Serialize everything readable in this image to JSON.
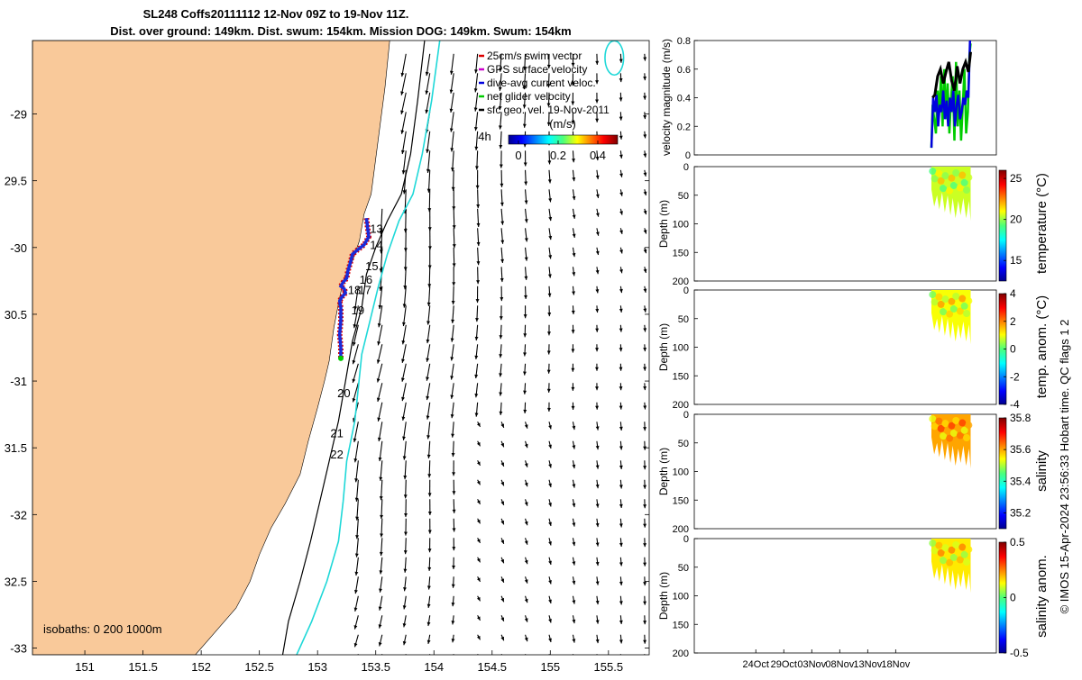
{
  "header": {
    "line1": "SL248 Coffs20111112 12-Nov 09Z to 19-Nov 11Z.",
    "line2": "Dist. over ground: 149km. Dist. swum: 154km. Mission DOG: 149km. Swum: 154km"
  },
  "side_stamp": "© IMOS 15-Apr-2024 23:56:33 Hobart time. QC flags 1  2",
  "colors": {
    "land": "#f9c99a",
    "isobath_200": "#000000",
    "isobath_1000": "#1fd8d8",
    "swim_vector": "#dd0000",
    "gps_velocity": "#cc00cc",
    "dive_avg": "#0000dd",
    "net_glider": "#00cc00",
    "sfc_geo": "#000000",
    "track": "#1a2ad8",
    "hist_mag": "#000000"
  },
  "chart_data": [
    {
      "type": "map",
      "name": "glider-track-map",
      "xlim": [
        150.55,
        155.85
      ],
      "ylim": [
        -33.05,
        -28.45
      ],
      "x_ticks": [
        151,
        151.5,
        152,
        152.5,
        153,
        153.5,
        154,
        154.5,
        155,
        155.5
      ],
      "x_tick_labels": [
        "151",
        "151.5",
        "152",
        "152.5",
        "153",
        "153.5",
        "154",
        "154.5",
        "155",
        "155.5"
      ],
      "y_ticks": [
        -29,
        -29.5,
        -30,
        -30.5,
        -31,
        -31.5,
        -32,
        -32.5,
        -33
      ],
      "y_tick_labels": [
        "-29",
        "29.5",
        "-30",
        "30.5",
        "-31",
        "31.5",
        "-32",
        "32.5",
        "-33"
      ],
      "coast": [
        [
          153.62,
          -28.45
        ],
        [
          153.58,
          -28.8
        ],
        [
          153.52,
          -29.2
        ],
        [
          153.46,
          -29.6
        ],
        [
          153.4,
          -29.75
        ],
        [
          153.36,
          -29.95
        ],
        [
          153.3,
          -30.1
        ],
        [
          153.22,
          -30.25
        ],
        [
          153.18,
          -30.42
        ],
        [
          153.14,
          -30.6
        ],
        [
          153.1,
          -30.85
        ],
        [
          153.06,
          -31.0
        ],
        [
          153.0,
          -31.2
        ],
        [
          152.92,
          -31.45
        ],
        [
          152.85,
          -31.7
        ],
        [
          152.72,
          -31.92
        ],
        [
          152.6,
          -32.1
        ],
        [
          152.5,
          -32.3
        ],
        [
          152.42,
          -32.5
        ],
        [
          152.3,
          -32.7
        ],
        [
          152.15,
          -32.85
        ],
        [
          152.05,
          -32.95
        ],
        [
          151.95,
          -33.05
        ]
      ],
      "isobath_200": [
        [
          153.92,
          -28.45
        ],
        [
          153.86,
          -28.9
        ],
        [
          153.8,
          -29.3
        ],
        [
          153.72,
          -29.6
        ],
        [
          153.6,
          -29.8
        ],
        [
          153.5,
          -30.0
        ],
        [
          153.42,
          -30.2
        ],
        [
          153.38,
          -30.45
        ],
        [
          153.3,
          -30.7
        ],
        [
          153.24,
          -31.0
        ],
        [
          153.18,
          -31.3
        ],
        [
          153.1,
          -31.6
        ],
        [
          153.02,
          -31.9
        ],
        [
          152.94,
          -32.2
        ],
        [
          152.85,
          -32.5
        ],
        [
          152.75,
          -32.8
        ],
        [
          152.7,
          -33.05
        ]
      ],
      "isobath_1000": [
        [
          154.05,
          -28.45
        ],
        [
          153.98,
          -28.9
        ],
        [
          153.9,
          -29.3
        ],
        [
          153.82,
          -29.6
        ],
        [
          153.7,
          -29.8
        ],
        [
          153.6,
          -30.05
        ],
        [
          153.52,
          -30.3
        ],
        [
          153.45,
          -30.55
        ],
        [
          153.38,
          -30.8
        ],
        [
          153.35,
          -31.05
        ],
        [
          153.32,
          -31.3
        ],
        [
          153.25,
          -31.6
        ],
        [
          153.22,
          -31.9
        ],
        [
          153.18,
          -32.2
        ],
        [
          153.08,
          -32.5
        ],
        [
          152.95,
          -32.8
        ],
        [
          152.82,
          -33.05
        ]
      ],
      "isobath_1000_ring": {
        "center": [
          155.55,
          -28.58
        ],
        "radius": [
          0.08,
          0.08
        ]
      },
      "glider_track": [
        [
          153.42,
          -29.78
        ],
        [
          153.43,
          -29.85
        ],
        [
          153.44,
          -29.92
        ],
        [
          153.4,
          -29.98
        ],
        [
          153.34,
          -30.02
        ],
        [
          153.3,
          -30.05
        ],
        [
          153.28,
          -30.12
        ],
        [
          153.26,
          -30.18
        ],
        [
          153.25,
          -30.23
        ],
        [
          153.22,
          -30.26
        ],
        [
          153.2,
          -30.29
        ],
        [
          153.23,
          -30.31
        ],
        [
          153.24,
          -30.34
        ],
        [
          153.21,
          -30.37
        ],
        [
          153.19,
          -30.4
        ],
        [
          153.2,
          -30.45
        ],
        [
          153.2,
          -30.55
        ],
        [
          153.19,
          -30.65
        ],
        [
          153.2,
          -30.75
        ],
        [
          153.2,
          -30.83
        ]
      ],
      "day_labels": [
        {
          "text": "13",
          "lon": 153.45,
          "lat": -29.89
        },
        {
          "text": "14",
          "lon": 153.45,
          "lat": -30.01
        },
        {
          "text": "15",
          "lon": 153.41,
          "lat": -30.17
        },
        {
          "text": "16",
          "lon": 153.36,
          "lat": -30.27
        },
        {
          "text": "18",
          "lon": 153.26,
          "lat": -30.35
        },
        {
          "text": "17",
          "lon": 153.35,
          "lat": -30.35
        },
        {
          "text": "19",
          "lon": 153.29,
          "lat": -30.5
        },
        {
          "text": "20",
          "lon": 153.17,
          "lat": -31.12
        },
        {
          "text": "21",
          "lon": 153.11,
          "lat": -31.42
        },
        {
          "text": "22",
          "lon": 153.11,
          "lat": -31.58
        },
        {
          "text": "4h",
          "lon": 154.38,
          "lat": -29.2
        }
      ],
      "legend": [
        {
          "label": "25cm/s swim vector",
          "color": "#dd0000"
        },
        {
          "label": "GPS surface velocity",
          "color": "#cc00cc"
        },
        {
          "label": "dive-avg current veloc.",
          "color": "#0000dd"
        },
        {
          "label": "net glider velocity",
          "color": "#00cc00"
        },
        {
          "label": "sfc geo. vel. 19-Nov-2011",
          "color": "#000000"
        }
      ],
      "colorbar": {
        "title": "(m/s)",
        "range": [
          -0.05,
          0.5
        ],
        "ticks": [
          0,
          0.2,
          0.4
        ],
        "tick_labels": [
          "0",
          "0.2",
          "0.4"
        ]
      },
      "isobath_note": "isobaths: 0   200  1000m"
    },
    {
      "type": "line",
      "name": "velocity-magnitude",
      "ylabel": "velocity magnitude (m/s)",
      "ylim": [
        0,
        0.8
      ],
      "y_ticks": [
        0,
        0.2,
        0.4,
        0.6,
        0.8
      ],
      "y_tick_labels": [
        "0",
        "0.2",
        "0.4",
        "0.6",
        "0.8"
      ],
      "x_range_days": [
        -30,
        24
      ],
      "series": [
        {
          "color": "#00cc00",
          "x": [
            12.4,
            12.6,
            12.9,
            13.2,
            13.5,
            13.8,
            14.1,
            14.4,
            14.7,
            15.0,
            15.3,
            15.6,
            15.9,
            16.2,
            16.5,
            16.8,
            17.1,
            17.4,
            17.7,
            18.0,
            18.3,
            18.6,
            18.9,
            19.2,
            19.4
          ],
          "y": [
            0.05,
            0.35,
            0.25,
            0.15,
            0.45,
            0.3,
            0.55,
            0.2,
            0.6,
            0.25,
            0.5,
            0.15,
            0.4,
            0.55,
            0.1,
            0.65,
            0.2,
            0.45,
            0.1,
            0.35,
            0.6,
            0.15,
            0.3,
            0.7,
            0.78
          ]
        },
        {
          "color": "#0000dd",
          "x": [
            12.4,
            12.7,
            13.0,
            13.3,
            13.6,
            13.9,
            14.2,
            14.5,
            14.8,
            15.1,
            15.4,
            15.7,
            16.0,
            16.3,
            16.6,
            16.9,
            17.2,
            17.5,
            17.8,
            18.1,
            18.4,
            18.7,
            19.0,
            19.3
          ],
          "y": [
            0.05,
            0.4,
            0.3,
            0.42,
            0.2,
            0.35,
            0.3,
            0.45,
            0.25,
            0.38,
            0.2,
            0.4,
            0.3,
            0.45,
            0.2,
            0.35,
            0.42,
            0.25,
            0.3,
            0.4,
            0.35,
            0.45,
            0.4,
            0.8
          ]
        },
        {
          "color": "#000000",
          "x": [
            12.6,
            13.0,
            13.5,
            14.0,
            14.5,
            15.0,
            15.5,
            16.0,
            16.5,
            17.0,
            17.5,
            18.0,
            18.5,
            19.0,
            19.4
          ],
          "y": [
            0.4,
            0.42,
            0.55,
            0.6,
            0.5,
            0.58,
            0.65,
            0.52,
            0.45,
            0.62,
            0.5,
            0.6,
            0.65,
            0.58,
            0.72
          ]
        }
      ]
    },
    {
      "type": "heatmap",
      "name": "temperature",
      "ylabel": "Depth (m)",
      "ylim": [
        0,
        200
      ],
      "y_ticks": [
        0,
        50,
        100,
        150,
        200
      ],
      "y_tick_labels": [
        "0",
        "50",
        "100",
        "150",
        "200"
      ],
      "colorbar_label": "temperature (°C)",
      "colorbar_range": [
        12.5,
        26
      ],
      "colorbar_ticks": [
        15,
        20,
        25
      ],
      "colorbar_tick_labels": [
        "15",
        "20",
        "25"
      ],
      "value_estimate": 20.5,
      "max_depth_profile": [
        [
          12.4,
          40
        ],
        [
          12.9,
          70
        ],
        [
          13.4,
          50
        ],
        [
          13.8,
          75
        ],
        [
          14.3,
          45
        ],
        [
          14.8,
          80
        ],
        [
          15.3,
          50
        ],
        [
          15.8,
          85
        ],
        [
          16.2,
          55
        ],
        [
          16.7,
          90
        ],
        [
          17.2,
          60
        ],
        [
          17.6,
          85
        ],
        [
          18.1,
          55
        ],
        [
          18.6,
          90
        ],
        [
          19.1,
          60
        ],
        [
          19.4,
          95
        ]
      ]
    },
    {
      "type": "heatmap",
      "name": "temperature-anomaly",
      "ylabel": "Depth (m)",
      "ylim": [
        0,
        200
      ],
      "y_ticks": [
        0,
        50,
        100,
        150,
        200
      ],
      "y_tick_labels": [
        "0",
        "50",
        "100",
        "150",
        "200"
      ],
      "colorbar_label": "temp. anom. (°C)",
      "colorbar_range": [
        -4,
        4
      ],
      "colorbar_ticks": [
        -4,
        -2,
        0,
        2,
        4
      ],
      "colorbar_tick_labels": [
        "-4",
        "-2",
        "0",
        "2",
        "4"
      ],
      "value_estimate": 1.0,
      "max_depth_profile": [
        [
          12.4,
          40
        ],
        [
          12.9,
          70
        ],
        [
          13.4,
          50
        ],
        [
          13.8,
          75
        ],
        [
          14.3,
          45
        ],
        [
          14.8,
          80
        ],
        [
          15.3,
          50
        ],
        [
          15.8,
          85
        ],
        [
          16.2,
          55
        ],
        [
          16.7,
          90
        ],
        [
          17.2,
          60
        ],
        [
          17.6,
          85
        ],
        [
          18.1,
          55
        ],
        [
          18.6,
          90
        ],
        [
          19.1,
          60
        ],
        [
          19.4,
          95
        ]
      ]
    },
    {
      "type": "heatmap",
      "name": "salinity",
      "ylabel": "Depth (m)",
      "ylim": [
        0,
        200
      ],
      "y_ticks": [
        0,
        50,
        100,
        150,
        200
      ],
      "y_tick_labels": [
        "0",
        "50",
        "100",
        "150",
        "200"
      ],
      "colorbar_label": "salinity",
      "colorbar_range": [
        35.1,
        35.8
      ],
      "colorbar_ticks": [
        35.2,
        35.4,
        35.6,
        35.8
      ],
      "colorbar_tick_labels": [
        "35.2",
        "35.4",
        "35.6",
        "35.8"
      ],
      "value_estimate": 35.6,
      "max_depth_profile": [
        [
          12.4,
          40
        ],
        [
          12.9,
          70
        ],
        [
          13.4,
          50
        ],
        [
          13.8,
          75
        ],
        [
          14.3,
          45
        ],
        [
          14.8,
          80
        ],
        [
          15.3,
          50
        ],
        [
          15.8,
          85
        ],
        [
          16.2,
          55
        ],
        [
          16.7,
          90
        ],
        [
          17.2,
          60
        ],
        [
          17.6,
          85
        ],
        [
          18.1,
          55
        ],
        [
          18.6,
          90
        ],
        [
          19.1,
          60
        ],
        [
          19.4,
          95
        ]
      ]
    },
    {
      "type": "heatmap",
      "name": "salinity-anomaly",
      "ylabel": "Depth (m)",
      "ylim": [
        0,
        200
      ],
      "y_ticks": [
        0,
        50,
        100,
        150,
        200
      ],
      "y_tick_labels": [
        "0",
        "50",
        "100",
        "150",
        "200"
      ],
      "colorbar_label": "salinity anom.",
      "colorbar_range": [
        -0.5,
        0.5
      ],
      "colorbar_ticks": [
        -0.5,
        0,
        0.5
      ],
      "colorbar_tick_labels": [
        "-0.5",
        "0",
        "0.5"
      ],
      "value_estimate": 0.15,
      "x_tick_days": [
        -19,
        -14,
        -9,
        -4,
        1,
        6
      ],
      "x_tick_labels": [
        "24Oct",
        "29Oct",
        "03Nov",
        "08Nov",
        "13Nov",
        "18Nov"
      ],
      "max_depth_profile": [
        [
          12.4,
          40
        ],
        [
          12.9,
          70
        ],
        [
          13.4,
          50
        ],
        [
          13.8,
          75
        ],
        [
          14.3,
          45
        ],
        [
          14.8,
          80
        ],
        [
          15.3,
          50
        ],
        [
          15.8,
          85
        ],
        [
          16.2,
          55
        ],
        [
          16.7,
          90
        ],
        [
          17.2,
          60
        ],
        [
          17.6,
          85
        ],
        [
          18.1,
          55
        ],
        [
          18.6,
          90
        ],
        [
          19.1,
          60
        ],
        [
          19.4,
          95
        ]
      ]
    }
  ]
}
